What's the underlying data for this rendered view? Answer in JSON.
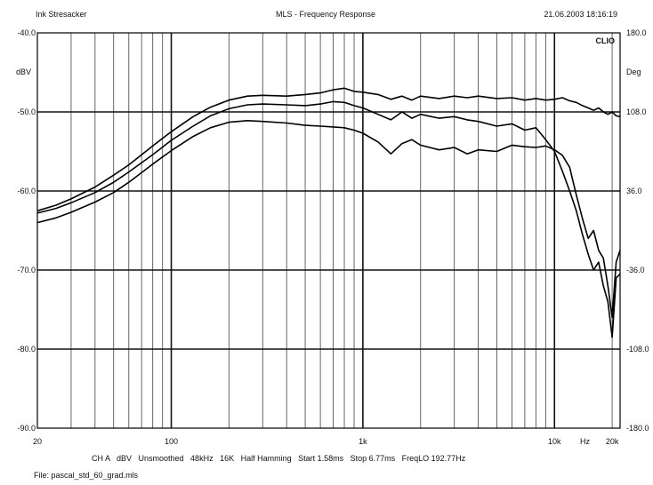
{
  "header": {
    "left": "Ink Stresacker",
    "center": "MLS - Frequency Response",
    "right": "21.06.2003 18:16:19"
  },
  "footer": {
    "settings": "CH A   dBV   Unsmoothed   48kHz   16K   Half Hamming   Start 1.58ms   Stop 6.77ms   FreqLO 192.77Hz",
    "file": "File: pascal_std_60_grad.mls"
  },
  "chart_data": {
    "type": "line",
    "xscale": "log",
    "xlim": [
      20,
      22000
    ],
    "ylim": [
      -90,
      -40
    ],
    "y2lim": [
      -180,
      180
    ],
    "grid": true,
    "ylabel": "dBV",
    "y2label": "Deg",
    "xunit": "Hz",
    "corner_label": "CLIO",
    "x_ticks": [
      {
        "value": 20,
        "label": "20"
      },
      {
        "value": 100,
        "label": "100"
      },
      {
        "value": 1000,
        "label": "1k"
      },
      {
        "value": 10000,
        "label": "10k"
      },
      {
        "value": 20000,
        "label": "20k"
      }
    ],
    "y_ticks": [
      {
        "value": -40,
        "label": "-40.0"
      },
      {
        "value": -50,
        "label": "-50.0"
      },
      {
        "value": -60,
        "label": "-60.0"
      },
      {
        "value": -70,
        "label": "-70.0"
      },
      {
        "value": -80,
        "label": "-80.0"
      },
      {
        "value": -90,
        "label": "-90.0"
      }
    ],
    "y2_ticks": [
      {
        "value": 180,
        "label": "180.0"
      },
      {
        "value": 108,
        "label": "108.0"
      },
      {
        "value": 36,
        "label": "36.0"
      },
      {
        "value": -36,
        "label": "-36.0"
      },
      {
        "value": -108,
        "label": "-108.0"
      },
      {
        "value": -180,
        "label": "-180.0"
      }
    ],
    "series": [
      {
        "x": [
          20,
          25,
          30,
          40,
          50,
          60,
          80,
          100,
          130,
          160,
          200,
          250,
          300,
          400,
          500,
          600,
          700,
          800,
          900,
          1000,
          1200,
          1400,
          1600,
          1800,
          2000,
          2500,
          3000,
          3500,
          4000,
          5000,
          6000,
          7000,
          8000,
          9000,
          10000,
          11000,
          12000,
          13000,
          14000,
          15000,
          16000,
          17000,
          18000,
          19000,
          20000,
          21000,
          22000
        ],
        "values": [
          -62.5,
          -61.8,
          -61.0,
          -59.5,
          -58.0,
          -56.7,
          -54.3,
          -52.5,
          -50.6,
          -49.4,
          -48.5,
          -48.0,
          -47.9,
          -48.0,
          -47.8,
          -47.6,
          -47.2,
          -47.0,
          -47.4,
          -47.5,
          -47.8,
          -48.4,
          -48.0,
          -48.5,
          -48.0,
          -48.3,
          -48.0,
          -48.2,
          -48.0,
          -48.3,
          -48.2,
          -48.5,
          -48.3,
          -48.5,
          -48.4,
          -48.2,
          -48.6,
          -48.8,
          -49.2,
          -49.5,
          -49.8,
          -49.5,
          -50.0,
          -50.3,
          -50.0,
          -50.5,
          -50.6
        ]
      },
      {
        "x": [
          20,
          25,
          30,
          40,
          50,
          60,
          80,
          100,
          130,
          160,
          200,
          250,
          300,
          400,
          500,
          600,
          700,
          800,
          900,
          1000,
          1200,
          1400,
          1600,
          1800,
          2000,
          2500,
          3000,
          3500,
          4000,
          5000,
          6000,
          7000,
          8000,
          9000,
          10000,
          11000,
          12000,
          13000,
          14000,
          15000,
          16000,
          17000,
          18000,
          19000,
          20000,
          21000,
          22000
        ],
        "values": [
          -62.8,
          -62.2,
          -61.5,
          -60.2,
          -58.9,
          -57.6,
          -55.4,
          -53.6,
          -51.8,
          -50.5,
          -49.6,
          -49.1,
          -49.0,
          -49.1,
          -49.2,
          -49.0,
          -48.7,
          -48.8,
          -49.2,
          -49.5,
          -50.3,
          -51.0,
          -50.0,
          -50.8,
          -50.3,
          -50.8,
          -50.6,
          -51.0,
          -51.2,
          -51.8,
          -51.5,
          -52.3,
          -52.0,
          -53.5,
          -55.0,
          -57.5,
          -60.0,
          -62.5,
          -65.5,
          -68.0,
          -70.0,
          -69.0,
          -72.0,
          -74.0,
          -78.5,
          -71.0,
          -70.5
        ]
      },
      {
        "x": [
          20,
          25,
          30,
          40,
          50,
          60,
          80,
          100,
          130,
          160,
          200,
          250,
          300,
          400,
          500,
          600,
          700,
          800,
          900,
          1000,
          1200,
          1400,
          1600,
          1800,
          2000,
          2500,
          3000,
          3500,
          4000,
          5000,
          6000,
          7000,
          8000,
          9000,
          10000,
          11000,
          12000,
          13000,
          14000,
          15000,
          16000,
          17000,
          18000,
          19000,
          20000,
          21000,
          22000
        ],
        "values": [
          -64.0,
          -63.4,
          -62.7,
          -61.4,
          -60.2,
          -58.9,
          -56.6,
          -54.9,
          -53.1,
          -52.0,
          -51.3,
          -51.1,
          -51.2,
          -51.4,
          -51.7,
          -51.8,
          -51.9,
          -52.0,
          -52.3,
          -52.7,
          -53.8,
          -55.3,
          -54.0,
          -53.5,
          -54.2,
          -54.8,
          -54.5,
          -55.3,
          -54.8,
          -55.0,
          -54.2,
          -54.4,
          -54.5,
          -54.3,
          -54.8,
          -55.5,
          -57.0,
          -60.5,
          -63.5,
          -66.0,
          -65.0,
          -67.5,
          -68.5,
          -72.0,
          -76.0,
          -69.0,
          -67.5
        ]
      }
    ]
  }
}
